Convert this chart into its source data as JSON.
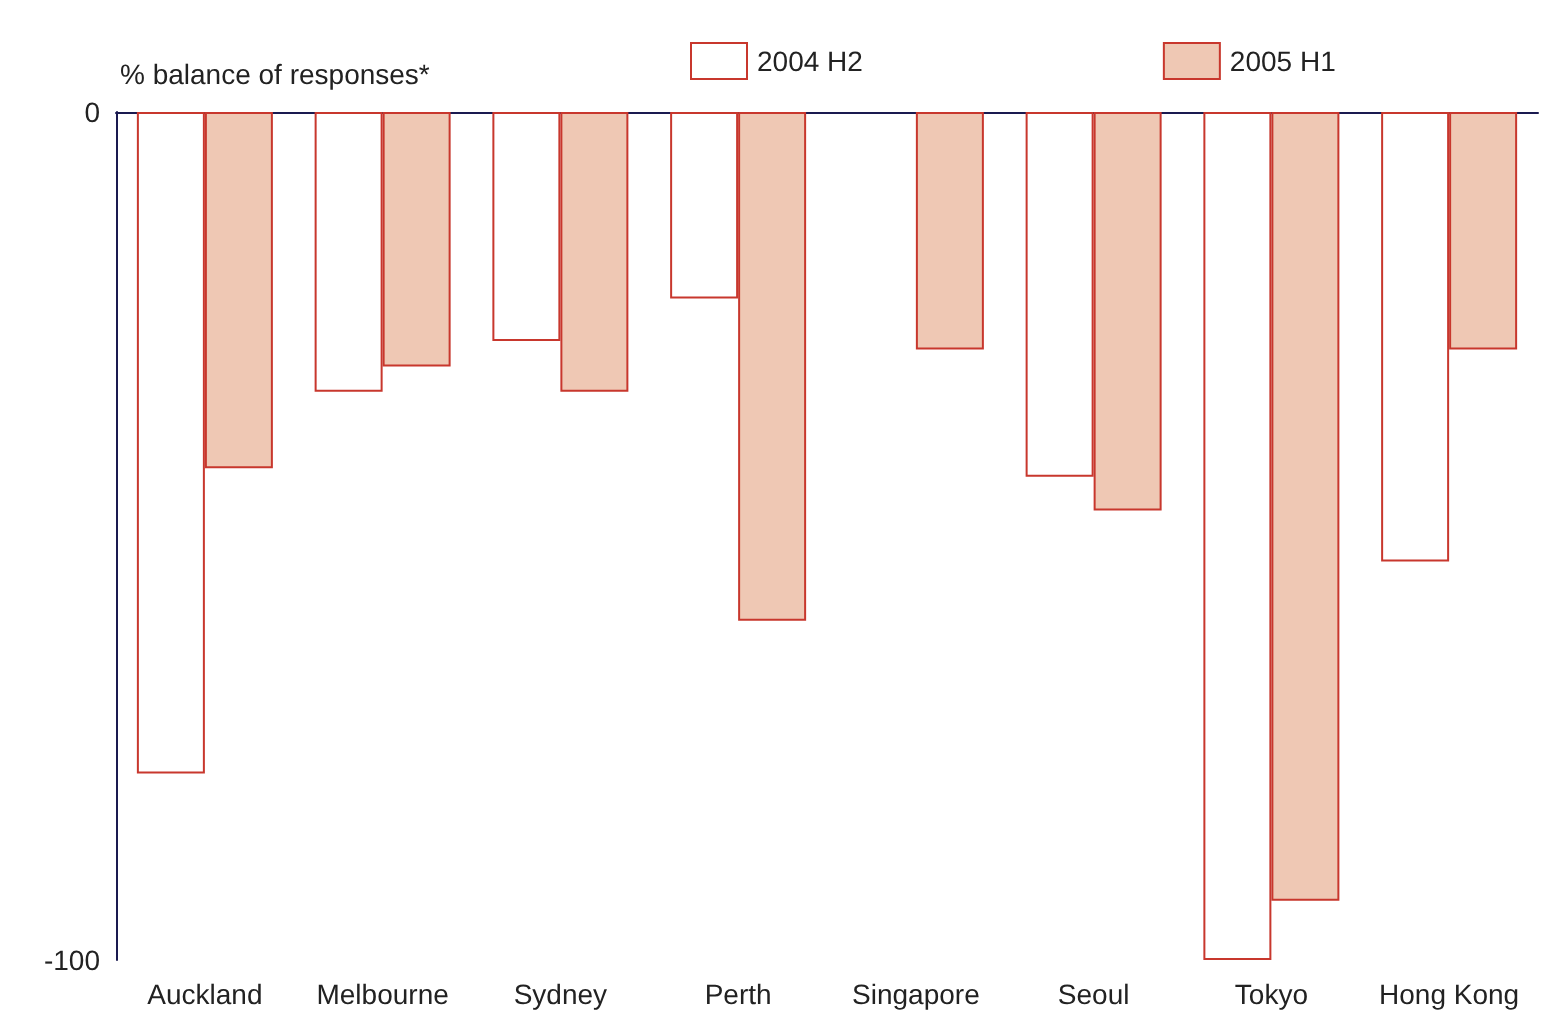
{
  "chart_data": {
    "type": "bar",
    "ylabel": "% balance of responses*",
    "categories": [
      "Auckland",
      "Melbourne",
      "Sydney",
      "Perth",
      "Singapore",
      "Seoul",
      "Tokyo",
      "Hong Kong"
    ],
    "series": [
      {
        "name": "2004 H2",
        "color": "#ffffff",
        "values": [
          -78,
          -33,
          -27,
          -22,
          null,
          -43,
          -100,
          -53
        ]
      },
      {
        "name": "2005 H1",
        "color": "#efc8b4",
        "values": [
          -42,
          -30,
          -33,
          -60,
          -28,
          -47,
          -93,
          -28
        ]
      }
    ],
    "ylim": [
      -100,
      0
    ],
    "yticks": [
      -100,
      0
    ],
    "grid": false,
    "legend": "top"
  }
}
